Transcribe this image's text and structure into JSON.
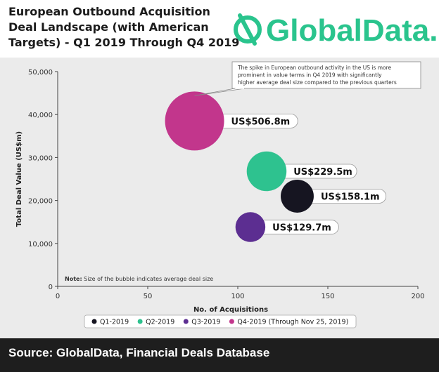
{
  "header": {
    "title_lines": [
      "European Outbound Acquisition",
      "Deal Landscape (with American",
      "Targets) - Q1 2019 Through Q4 2019"
    ],
    "logo_text": "GlobalData."
  },
  "colors": {
    "brand_green": "#2ac48d",
    "q1": "#161521",
    "q2": "#2ec28f",
    "q3": "#5c2e91",
    "q4": "#c2368c",
    "chart_bg": "#ebebeb",
    "footer_bg": "#1e1e1e"
  },
  "chart_data": {
    "type": "scatter",
    "title": "European Outbound Acquisition Deal Landscape (with American Targets) - Q1 2019 Through Q4 2019",
    "xlabel": "No. of Acquisitions",
    "ylabel": "Total Deal Value (US$m)",
    "xlim": [
      0,
      200
    ],
    "ylim": [
      0,
      50000
    ],
    "x_ticks": [
      "0",
      "50",
      "100",
      "150",
      "200"
    ],
    "y_ticks": [
      "0",
      "10,000",
      "20,000",
      "30,000",
      "40,000",
      "50,000"
    ],
    "series": [
      {
        "name": "Q1-2019",
        "x": 133,
        "y": 21000,
        "avg_deal_size": 158.1,
        "label": "US$158.1m",
        "color": "#161521"
      },
      {
        "name": "Q2-2019",
        "x": 116,
        "y": 26800,
        "avg_deal_size": 229.5,
        "label": "US$229.5m",
        "color": "#2ec28f"
      },
      {
        "name": "Q3-2019",
        "x": 107,
        "y": 13800,
        "avg_deal_size": 129.7,
        "label": "US$129.7m",
        "color": "#5c2e91"
      },
      {
        "name": "Q4-2019 (Through Nov 25, 2019)",
        "x": 76,
        "y": 38500,
        "avg_deal_size": 506.8,
        "label": "US$506.8m",
        "color": "#c2368c"
      }
    ],
    "legend": [
      "Q1-2019",
      "Q2-2019",
      "Q3-2019",
      "Q4-2019 (Through Nov 25, 2019)"
    ],
    "legend_position": "bottom",
    "annotation": "The spike in European outbound activity in the US is more prominent in value terms in Q4 2019 with significantly higher average deal size compared to the previous quarters",
    "note_label": "Note:",
    "note_text": "Size of the bubble indicates average deal size"
  },
  "footer": {
    "source": "Source: GlobalData, Financial Deals Database"
  }
}
